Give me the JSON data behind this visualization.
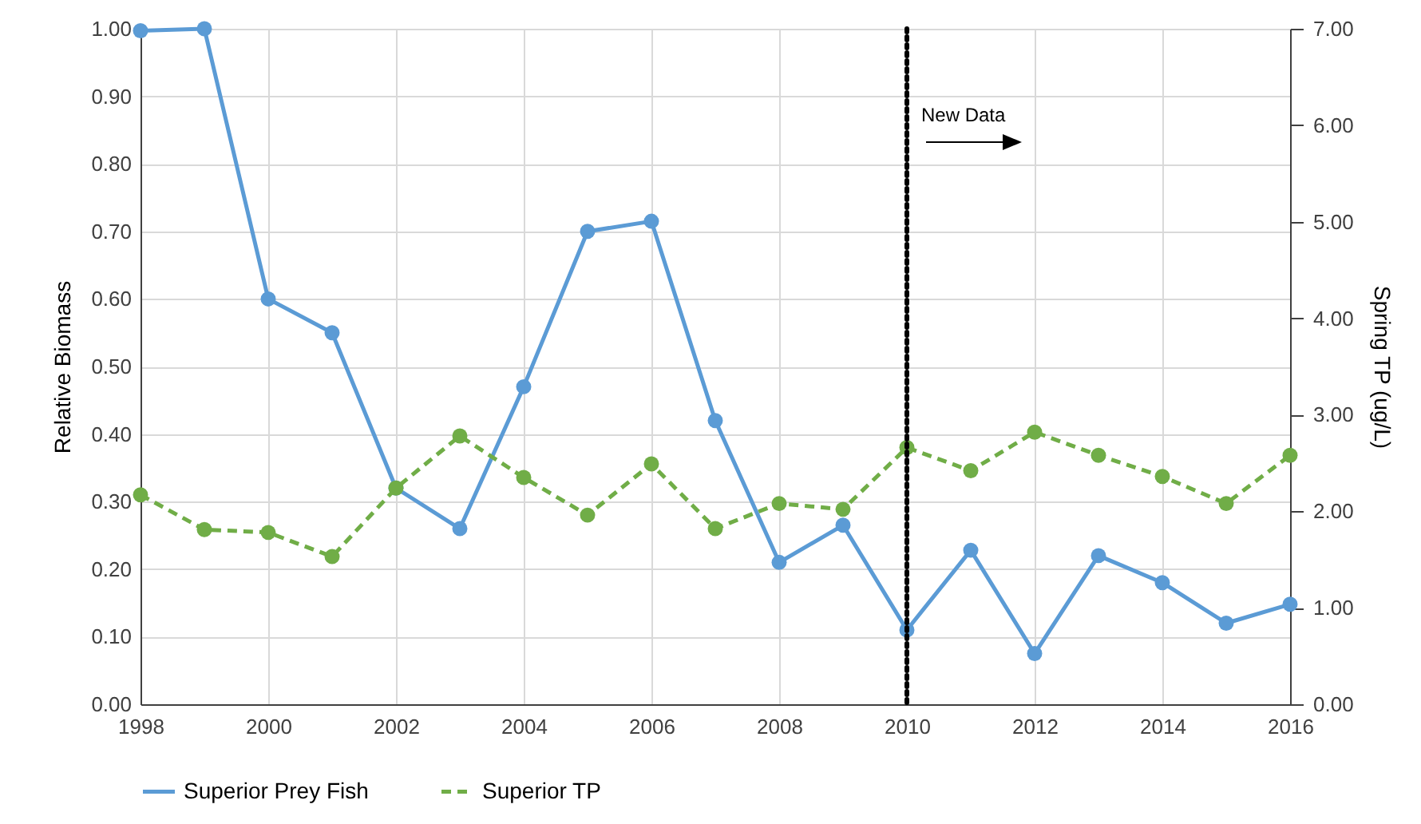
{
  "chart_data": {
    "type": "line",
    "xlabel": null,
    "ylabel": "Relative Biomass",
    "y2label": "Spring TP (ug/L)",
    "x": [
      1998,
      1999,
      2000,
      2001,
      2002,
      2003,
      2004,
      2005,
      2006,
      2007,
      2008,
      2009,
      2010,
      2011,
      2012,
      2013,
      2014,
      2015,
      2016
    ],
    "series": [
      {
        "name": "Superior Prey Fish",
        "color": "#5b9bd5",
        "line_style": "solid",
        "values": [
          0.997,
          1.0,
          0.6,
          0.55,
          0.32,
          0.26,
          0.47,
          0.7,
          0.715,
          0.42,
          0.21,
          0.265,
          0.11,
          0.228,
          0.075,
          0.22,
          0.18,
          0.12,
          0.148
        ]
      },
      {
        "name": "Superior TP",
        "color": "#70ad47",
        "line_style": "dashed",
        "axis": "y2",
        "values": [
          2.17,
          1.81,
          1.78,
          1.53,
          2.24,
          2.78,
          2.35,
          1.96,
          2.49,
          1.82,
          2.08,
          2.02,
          2.66,
          2.42,
          2.82,
          2.58,
          2.36,
          2.08,
          2.58
        ]
      }
    ],
    "xlim": [
      1998,
      2016
    ],
    "xticks": [
      1998,
      2000,
      2002,
      2004,
      2006,
      2008,
      2010,
      2012,
      2014,
      2016
    ],
    "ylim": [
      0,
      1
    ],
    "yticks": [
      {
        "value": 0,
        "label": "0.00"
      },
      {
        "value": 0.1,
        "label": "0.10"
      },
      {
        "value": 0.2,
        "label": "0.20"
      },
      {
        "value": 0.3,
        "label": "0.30"
      },
      {
        "value": 0.4,
        "label": "0.40"
      },
      {
        "value": 0.5,
        "label": "0.50"
      },
      {
        "value": 0.6,
        "label": "0.60"
      },
      {
        "value": 0.7,
        "label": "0.70"
      },
      {
        "value": 0.8,
        "label": "0.80"
      },
      {
        "value": 0.9,
        "label": "0.90"
      },
      {
        "value": 1,
        "label": "1.00"
      }
    ],
    "y2lim": [
      0,
      7
    ],
    "y2ticks": [
      {
        "value": 0,
        "label": "0.00"
      },
      {
        "value": 1,
        "label": "1.00"
      },
      {
        "value": 2,
        "label": "2.00"
      },
      {
        "value": 3,
        "label": "3.00"
      },
      {
        "value": 4,
        "label": "4.00"
      },
      {
        "value": 5,
        "label": "5.00"
      },
      {
        "value": 6,
        "label": "6.00"
      },
      {
        "value": 7,
        "label": "7.00"
      }
    ],
    "ref_lines": [
      {
        "axis": "x",
        "value": 2010,
        "color": "#000000",
        "line_style": "dotted"
      }
    ],
    "annotations": [
      "New Data"
    ],
    "grid": true,
    "legend": "bottom",
    "marker": "circle"
  }
}
